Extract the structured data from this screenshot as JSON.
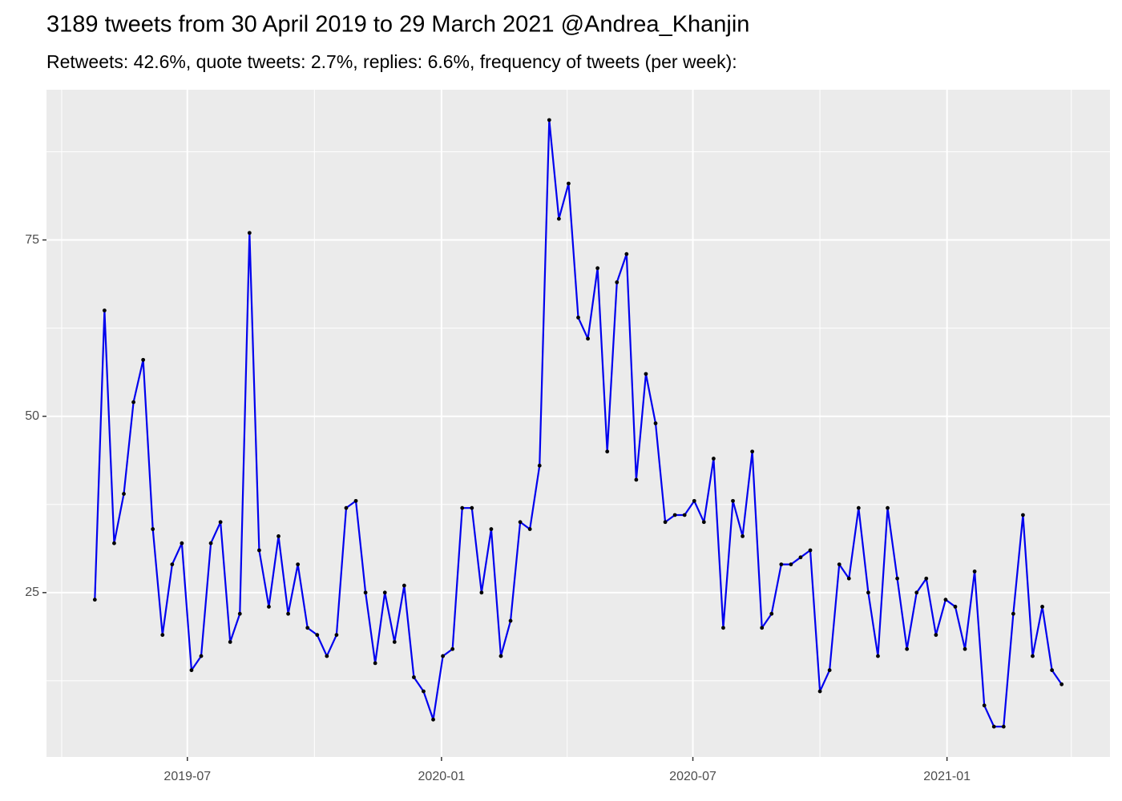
{
  "chart_data": {
    "type": "line",
    "title": "3189 tweets from 30 April 2019 to 29 March 2021 @Andrea_Khanjin",
    "subtitle": "Retweets: 42.6%, quote tweets: 2.7%, replies: 6.6%, frequency of tweets (per week):",
    "x": [
      "2019-04-25",
      "2019-05-02",
      "2019-05-09",
      "2019-05-16",
      "2019-05-23",
      "2019-05-30",
      "2019-06-06",
      "2019-06-13",
      "2019-06-20",
      "2019-06-27",
      "2019-07-04",
      "2019-07-11",
      "2019-07-18",
      "2019-07-25",
      "2019-08-01",
      "2019-08-08",
      "2019-08-15",
      "2019-08-22",
      "2019-08-29",
      "2019-09-05",
      "2019-09-12",
      "2019-09-19",
      "2019-09-26",
      "2019-10-03",
      "2019-10-10",
      "2019-10-17",
      "2019-10-24",
      "2019-10-31",
      "2019-11-07",
      "2019-11-14",
      "2019-11-21",
      "2019-11-28",
      "2019-12-05",
      "2019-12-12",
      "2019-12-19",
      "2019-12-26",
      "2020-01-02",
      "2020-01-09",
      "2020-01-16",
      "2020-01-23",
      "2020-01-30",
      "2020-02-06",
      "2020-02-13",
      "2020-02-20",
      "2020-02-27",
      "2020-03-05",
      "2020-03-12",
      "2020-03-19",
      "2020-03-26",
      "2020-04-02",
      "2020-04-09",
      "2020-04-16",
      "2020-04-23",
      "2020-04-30",
      "2020-05-07",
      "2020-05-14",
      "2020-05-21",
      "2020-05-28",
      "2020-06-04",
      "2020-06-11",
      "2020-06-18",
      "2020-06-25",
      "2020-07-02",
      "2020-07-09",
      "2020-07-16",
      "2020-07-23",
      "2020-07-30",
      "2020-08-06",
      "2020-08-13",
      "2020-08-20",
      "2020-08-27",
      "2020-09-03",
      "2020-09-10",
      "2020-09-17",
      "2020-09-24",
      "2020-10-01",
      "2020-10-08",
      "2020-10-15",
      "2020-10-22",
      "2020-10-29",
      "2020-11-05",
      "2020-11-12",
      "2020-11-19",
      "2020-11-26",
      "2020-12-03",
      "2020-12-10",
      "2020-12-17",
      "2020-12-24",
      "2020-12-31",
      "2021-01-07",
      "2021-01-14",
      "2021-01-21",
      "2021-01-28",
      "2021-02-04",
      "2021-02-11",
      "2021-02-18",
      "2021-02-25",
      "2021-03-04",
      "2021-03-11",
      "2021-03-18",
      "2021-03-25"
    ],
    "values": [
      24,
      65,
      32,
      39,
      52,
      58,
      34,
      19,
      29,
      32,
      14,
      16,
      32,
      35,
      18,
      22,
      76,
      31,
      23,
      33,
      22,
      29,
      20,
      19,
      16,
      19,
      37,
      38,
      25,
      15,
      25,
      18,
      26,
      13,
      11,
      7,
      16,
      17,
      37,
      37,
      25,
      34,
      16,
      21,
      35,
      34,
      43,
      92,
      78,
      83,
      64,
      61,
      71,
      45,
      69,
      73,
      41,
      56,
      49,
      35,
      36,
      36,
      38,
      35,
      44,
      20,
      38,
      33,
      45,
      20,
      22,
      29,
      29,
      30,
      31,
      11,
      14,
      29,
      27,
      37,
      25,
      16,
      37,
      27,
      17,
      25,
      27,
      19,
      24,
      23,
      17,
      28,
      9,
      6,
      6,
      22,
      36,
      16,
      23,
      14,
      12
    ],
    "color": "#0000ee",
    "point_color": "#000000",
    "xlim": [
      "2019-03-21",
      "2021-04-29"
    ],
    "xticks": [
      {
        "value": "2019-07-01",
        "label": "2019-07"
      },
      {
        "value": "2020-01-01",
        "label": "2020-01"
      },
      {
        "value": "2020-07-01",
        "label": "2020-07"
      },
      {
        "value": "2021-01-01",
        "label": "2021-01"
      }
    ],
    "xminor": [
      "2019-04-01",
      "2019-10-01",
      "2020-04-01",
      "2020-10-01",
      "2021-04-01"
    ],
    "ylim": [
      1.7,
      96.3
    ],
    "yticks": [
      25,
      50,
      75
    ],
    "yminor": [
      12.5,
      37.5,
      62.5,
      87.5
    ],
    "grid": true
  }
}
